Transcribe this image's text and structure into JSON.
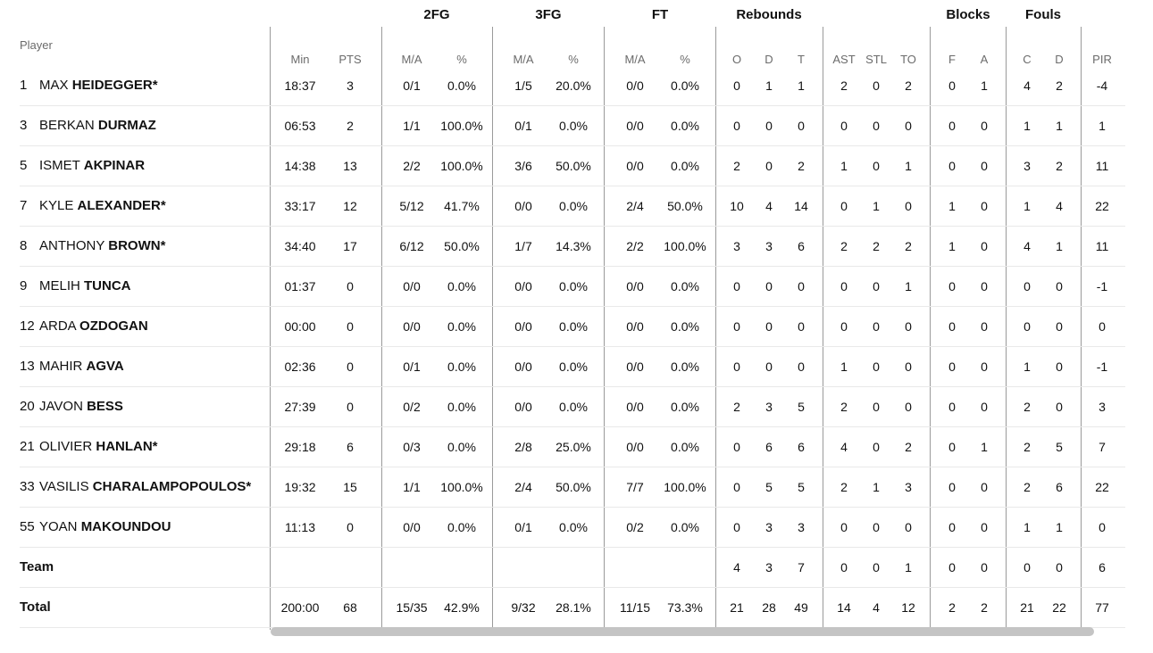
{
  "header": {
    "player_label": "Player",
    "groups": [
      "2FG",
      "3FG",
      "FT",
      "Rebounds",
      "Blocks",
      "Fouls"
    ],
    "subs": [
      "Min",
      "PTS",
      "M/A",
      "%",
      "M/A",
      "%",
      "M/A",
      "%",
      "O",
      "D",
      "T",
      "AST",
      "STL",
      "TO",
      "F",
      "A",
      "C",
      "D",
      "PIR"
    ]
  },
  "rows": [
    {
      "num": "1",
      "first": "MAX",
      "last": "HEIDEGGER*",
      "stats": [
        "18:37",
        "3",
        "0/1",
        "0.0%",
        "1/5",
        "20.0%",
        "0/0",
        "0.0%",
        "0",
        "1",
        "1",
        "2",
        "0",
        "2",
        "0",
        "1",
        "4",
        "2",
        "-4"
      ]
    },
    {
      "num": "3",
      "first": "BERKAN",
      "last": "DURMAZ",
      "stats": [
        "06:53",
        "2",
        "1/1",
        "100.0%",
        "0/1",
        "0.0%",
        "0/0",
        "0.0%",
        "0",
        "0",
        "0",
        "0",
        "0",
        "0",
        "0",
        "0",
        "1",
        "1",
        "1"
      ]
    },
    {
      "num": "5",
      "first": "ISMET",
      "last": "AKPINAR",
      "stats": [
        "14:38",
        "13",
        "2/2",
        "100.0%",
        "3/6",
        "50.0%",
        "0/0",
        "0.0%",
        "2",
        "0",
        "2",
        "1",
        "0",
        "1",
        "0",
        "0",
        "3",
        "2",
        "11"
      ]
    },
    {
      "num": "7",
      "first": "KYLE",
      "last": "ALEXANDER*",
      "stats": [
        "33:17",
        "12",
        "5/12",
        "41.7%",
        "0/0",
        "0.0%",
        "2/4",
        "50.0%",
        "10",
        "4",
        "14",
        "0",
        "1",
        "0",
        "1",
        "0",
        "1",
        "4",
        "22"
      ]
    },
    {
      "num": "8",
      "first": "ANTHONY",
      "last": "BROWN*",
      "stats": [
        "34:40",
        "17",
        "6/12",
        "50.0%",
        "1/7",
        "14.3%",
        "2/2",
        "100.0%",
        "3",
        "3",
        "6",
        "2",
        "2",
        "2",
        "1",
        "0",
        "4",
        "1",
        "11"
      ]
    },
    {
      "num": "9",
      "first": "MELIH",
      "last": "TUNCA",
      "stats": [
        "01:37",
        "0",
        "0/0",
        "0.0%",
        "0/0",
        "0.0%",
        "0/0",
        "0.0%",
        "0",
        "0",
        "0",
        "0",
        "0",
        "1",
        "0",
        "0",
        "0",
        "0",
        "-1"
      ]
    },
    {
      "num": "12",
      "first": "ARDA",
      "last": "OZDOGAN",
      "stats": [
        "00:00",
        "0",
        "0/0",
        "0.0%",
        "0/0",
        "0.0%",
        "0/0",
        "0.0%",
        "0",
        "0",
        "0",
        "0",
        "0",
        "0",
        "0",
        "0",
        "0",
        "0",
        "0"
      ]
    },
    {
      "num": "13",
      "first": "MAHIR",
      "last": "AGVA",
      "stats": [
        "02:36",
        "0",
        "0/1",
        "0.0%",
        "0/0",
        "0.0%",
        "0/0",
        "0.0%",
        "0",
        "0",
        "0",
        "1",
        "0",
        "0",
        "0",
        "0",
        "1",
        "0",
        "-1"
      ]
    },
    {
      "num": "20",
      "first": "JAVON",
      "last": "BESS",
      "stats": [
        "27:39",
        "0",
        "0/2",
        "0.0%",
        "0/0",
        "0.0%",
        "0/0",
        "0.0%",
        "2",
        "3",
        "5",
        "2",
        "0",
        "0",
        "0",
        "0",
        "2",
        "0",
        "3"
      ]
    },
    {
      "num": "21",
      "first": "OLIVIER",
      "last": "HANLAN*",
      "stats": [
        "29:18",
        "6",
        "0/3",
        "0.0%",
        "2/8",
        "25.0%",
        "0/0",
        "0.0%",
        "0",
        "6",
        "6",
        "4",
        "0",
        "2",
        "0",
        "1",
        "2",
        "5",
        "7"
      ]
    },
    {
      "num": "33",
      "first": "VASILIS",
      "last": "CHARALAMPOPOULOS*",
      "stats": [
        "19:32",
        "15",
        "1/1",
        "100.0%",
        "2/4",
        "50.0%",
        "7/7",
        "100.0%",
        "0",
        "5",
        "5",
        "2",
        "1",
        "3",
        "0",
        "0",
        "2",
        "6",
        "22"
      ]
    },
    {
      "num": "55",
      "first": "YOAN",
      "last": "MAKOUNDOU",
      "stats": [
        "11:13",
        "0",
        "0/0",
        "0.0%",
        "0/1",
        "0.0%",
        "0/2",
        "0.0%",
        "0",
        "3",
        "3",
        "0",
        "0",
        "0",
        "0",
        "0",
        "1",
        "1",
        "0"
      ]
    },
    {
      "label": "Team",
      "stats": [
        "",
        "",
        "",
        "",
        "",
        "",
        "",
        "",
        "4",
        "3",
        "7",
        "0",
        "0",
        "1",
        "0",
        "0",
        "0",
        "0",
        "6"
      ]
    },
    {
      "label": "Total",
      "stats": [
        "200:00",
        "68",
        "15/35",
        "42.9%",
        "9/32",
        "28.1%",
        "11/15",
        "73.3%",
        "21",
        "28",
        "49",
        "14",
        "4",
        "12",
        "2",
        "2",
        "21",
        "22",
        "77"
      ]
    }
  ]
}
